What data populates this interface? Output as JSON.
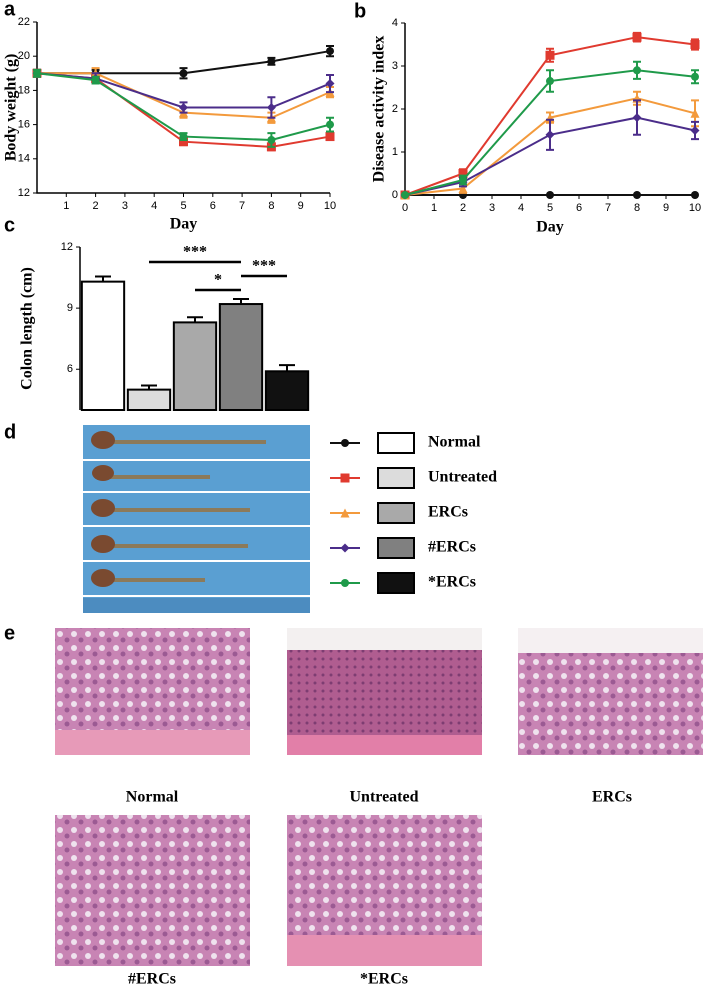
{
  "panel_labels": [
    "a",
    "b",
    "c",
    "d",
    "e"
  ],
  "chart_data": [
    {
      "type": "line",
      "ylabel": "Body weight (g)",
      "xlabel": "Day",
      "x": [
        0,
        2,
        5,
        8,
        10
      ],
      "xlim": [
        0,
        10
      ],
      "xticks": [
        1,
        2,
        3,
        4,
        5,
        6,
        7,
        8,
        9,
        10
      ],
      "ylim": [
        12,
        22
      ],
      "yticks": [
        12,
        14,
        16,
        18,
        20,
        22
      ],
      "series": [
        {
          "name": "Normal",
          "color": "#111111",
          "marker": "circle",
          "values": [
            19,
            19,
            19,
            19.7,
            20.3
          ],
          "errors": [
            0.2,
            0.2,
            0.3,
            0.2,
            0.3
          ]
        },
        {
          "name": "Untreated",
          "color": "#e03a2f",
          "marker": "square",
          "values": [
            19,
            18.7,
            15,
            14.7,
            15.3
          ],
          "errors": [
            0.2,
            0.2,
            0.2,
            0.2,
            0.2
          ]
        },
        {
          "name": "ERCs",
          "color": "#f39a3c",
          "marker": "triangle",
          "values": [
            19,
            19,
            16.7,
            16.4,
            17.9
          ],
          "errors": [
            0.2,
            0.3,
            0.3,
            0.3,
            0.3
          ]
        },
        {
          "name": "#ERCs",
          "color": "#4b2d8a",
          "marker": "diamond",
          "values": [
            19,
            18.7,
            17,
            17,
            18.4
          ],
          "errors": [
            0.2,
            0.3,
            0.3,
            0.6,
            0.5
          ]
        },
        {
          "name": "*ERCs",
          "color": "#1f9a4a",
          "marker": "circle",
          "values": [
            19,
            18.6,
            15.3,
            15.1,
            16
          ],
          "errors": [
            0.2,
            0.2,
            0.2,
            0.4,
            0.4
          ]
        }
      ]
    },
    {
      "type": "line",
      "ylabel": "Disease activity index",
      "xlabel": "Day",
      "x": [
        0,
        2,
        5,
        8,
        10
      ],
      "xlim": [
        0,
        10
      ],
      "xticks": [
        0,
        1,
        2,
        3,
        4,
        5,
        6,
        7,
        8,
        9,
        10
      ],
      "ylim": [
        0,
        4
      ],
      "yticks": [
        0,
        1,
        2,
        3,
        4
      ],
      "series": [
        {
          "name": "Normal",
          "color": "#111111",
          "marker": "circle",
          "values": [
            0,
            0,
            0,
            0,
            0
          ],
          "errors": [
            0,
            0,
            0,
            0,
            0
          ]
        },
        {
          "name": "Untreated",
          "color": "#e03a2f",
          "marker": "square",
          "values": [
            0,
            0.5,
            3.25,
            3.67,
            3.5
          ],
          "errors": [
            0,
            0.1,
            0.15,
            0.1,
            0.12
          ]
        },
        {
          "name": "ERCs",
          "color": "#f39a3c",
          "marker": "triangle",
          "values": [
            0,
            0.15,
            1.8,
            2.25,
            1.9
          ],
          "errors": [
            0,
            0.1,
            0.12,
            0.15,
            0.3
          ]
        },
        {
          "name": "#ERCs",
          "color": "#4b2d8a",
          "marker": "diamond",
          "values": [
            0,
            0.3,
            1.4,
            1.8,
            1.5
          ],
          "errors": [
            0,
            0.1,
            0.35,
            0.4,
            0.2
          ]
        },
        {
          "name": "*ERCs",
          "color": "#1f9a4a",
          "marker": "circle",
          "values": [
            0,
            0.35,
            2.65,
            2.9,
            2.75
          ],
          "errors": [
            0,
            0.1,
            0.25,
            0.2,
            0.15
          ]
        }
      ]
    },
    {
      "type": "bar",
      "ylabel": "Colon length (cm)",
      "categories": [
        null,
        null,
        null,
        null,
        null
      ],
      "values": [
        10.3,
        5.0,
        8.3,
        9.2,
        5.9
      ],
      "errors": [
        0.25,
        0.2,
        0.25,
        0.25,
        0.3
      ],
      "colors": [
        "#ffffff",
        "#dcdcdc",
        "#a9a9a9",
        "#808080",
        "#111111"
      ],
      "ylim": [
        4,
        12
      ],
      "yticks": [
        6,
        9,
        12
      ],
      "annotations": [
        {
          "text": "***",
          "from": 1,
          "to": 3,
          "level": 0
        },
        {
          "text": "*",
          "from": 2,
          "to": 3,
          "level": 2
        },
        {
          "text": "***",
          "from": 3,
          "to": 4,
          "level": 1
        }
      ]
    }
  ],
  "histology": {
    "captions": [
      "Normal",
      "Untreated",
      "ERCs",
      "#ERCs",
      "*ERCs"
    ]
  }
}
